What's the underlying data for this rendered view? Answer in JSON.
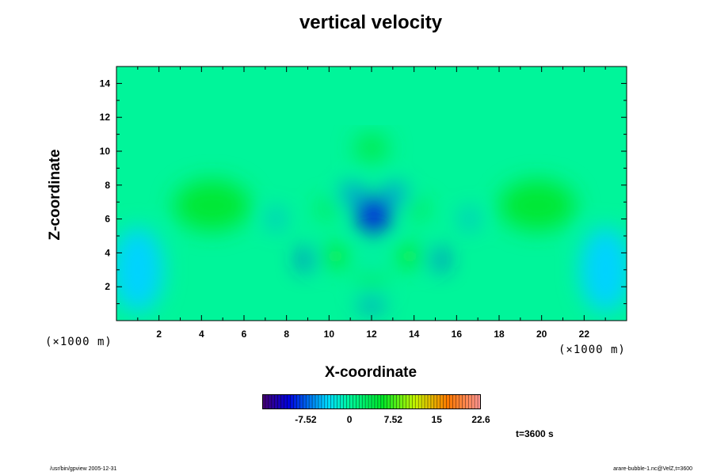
{
  "chart_data": {
    "type": "heatmap",
    "title": "vertical velocity",
    "xlabel": "X-coordinate",
    "ylabel": "Z-coordinate",
    "x_scale_label": "(×1000 m)",
    "y_scale_label": "(×1000 m)",
    "x_range": [
      0,
      24
    ],
    "y_range": [
      0,
      15
    ],
    "x_ticks": [
      2,
      4,
      6,
      8,
      10,
      12,
      14,
      16,
      18,
      20,
      22
    ],
    "y_ticks": [
      2,
      4,
      6,
      8,
      10,
      12,
      14
    ],
    "x_tick_labels": [
      "2",
      "4",
      "6",
      "8",
      "10",
      "12",
      "14",
      "16",
      "18",
      "20",
      "22"
    ],
    "y_tick_labels": [
      "2",
      "4",
      "6",
      "8",
      "10",
      "12",
      "14"
    ],
    "colorbar": {
      "range": [
        -15,
        22.6
      ],
      "ticks": [
        -7.52,
        0,
        7.52,
        15,
        22.6
      ],
      "tick_labels": [
        "-7.52",
        "0",
        "7.52",
        "15",
        "22.6"
      ],
      "colormap": "rainbow"
    },
    "time_label": "t=3600 s",
    "features": [
      {
        "x": 12.1,
        "y": 6.2,
        "value": -10,
        "sx": 0.8,
        "sy": 1.0
      },
      {
        "x": 11.1,
        "y": 7.5,
        "value": -7,
        "sx": 0.5,
        "sy": 0.5
      },
      {
        "x": 13.1,
        "y": 7.5,
        "value": -7,
        "sx": 0.5,
        "sy": 0.5
      },
      {
        "x": 8.9,
        "y": 3.6,
        "value": -9,
        "sx": 0.3,
        "sy": 0.6
      },
      {
        "x": 15.2,
        "y": 3.6,
        "value": -9,
        "sx": 0.3,
        "sy": 0.6
      },
      {
        "x": 7.5,
        "y": 6.0,
        "value": -6,
        "sx": 0.25,
        "sy": 0.6
      },
      {
        "x": 16.6,
        "y": 6.0,
        "value": -6,
        "sx": 0.25,
        "sy": 0.6
      },
      {
        "x": 12.0,
        "y": 1.0,
        "value": -8,
        "sx": 0.6,
        "sy": 0.3
      },
      {
        "x": 12.0,
        "y": 3.5,
        "value": -5,
        "sx": 0.2,
        "sy": 0.2
      },
      {
        "x": 10.3,
        "y": 3.8,
        "value": 6,
        "sx": 0.6,
        "sy": 0.6
      },
      {
        "x": 13.8,
        "y": 3.8,
        "value": 6,
        "sx": 0.6,
        "sy": 0.6
      },
      {
        "x": 9.9,
        "y": 6.6,
        "value": 5,
        "sx": 0.4,
        "sy": 0.5
      },
      {
        "x": 14.2,
        "y": 6.6,
        "value": 5,
        "sx": 0.4,
        "sy": 0.5
      },
      {
        "x": 12.0,
        "y": 10.2,
        "value": 4,
        "sx": 0.8,
        "sy": 0.8
      },
      {
        "x": 4.5,
        "y": 6.8,
        "value": 5,
        "sx": 1.8,
        "sy": 1.5
      },
      {
        "x": 19.8,
        "y": 6.8,
        "value": 5,
        "sx": 1.8,
        "sy": 1.5
      },
      {
        "x": 1.0,
        "y": 3.0,
        "value": -4,
        "sx": 1.2,
        "sy": 2.5
      },
      {
        "x": 23.0,
        "y": 3.0,
        "value": -4,
        "sx": 1.2,
        "sy": 2.5
      },
      {
        "x": 12.0,
        "y": 2.4,
        "value": 3,
        "sx": 0.8,
        "sy": 0.4
      }
    ]
  },
  "footer": {
    "left": "/usr/bin/gpview 2005-12-31",
    "right": "arare-bubble-1.nc@VelZ,t=3600"
  }
}
